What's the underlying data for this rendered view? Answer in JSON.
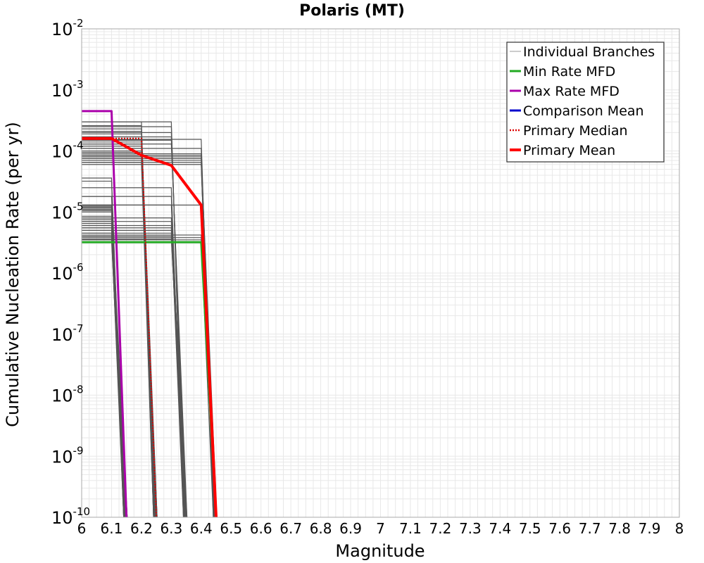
{
  "chart_data": {
    "type": "line",
    "title": "Polaris (MT)",
    "xlabel": "Magnitude",
    "ylabel": "Cumulative Nucleation Rate (per yr)",
    "xlim": [
      6,
      8
    ],
    "ylim": [
      1e-10,
      0.01
    ],
    "yscale": "log",
    "grid": true,
    "legend_position": "top-right",
    "x_ticks": [
      "6",
      "6.1",
      "6.2",
      "6.3",
      "6.4",
      "6.5",
      "6.6",
      "6.7",
      "6.8",
      "6.9",
      "7",
      "7.1",
      "7.2",
      "7.3",
      "7.4",
      "7.5",
      "7.6",
      "7.7",
      "7.8",
      "7.9",
      "8"
    ],
    "y_ticks": [
      {
        "base": "10",
        "exp": "-10",
        "value": 1e-10
      },
      {
        "base": "10",
        "exp": "-9",
        "value": 1e-09
      },
      {
        "base": "10",
        "exp": "-8",
        "value": 1e-08
      },
      {
        "base": "10",
        "exp": "-7",
        "value": 1e-07
      },
      {
        "base": "10",
        "exp": "-6",
        "value": 1e-06
      },
      {
        "base": "10",
        "exp": "-5",
        "value": 1e-05
      },
      {
        "base": "10",
        "exp": "-4",
        "value": 0.0001
      },
      {
        "base": "10",
        "exp": "-3",
        "value": 0.001
      },
      {
        "base": "10",
        "exp": "-2",
        "value": 0.01
      }
    ],
    "colors": {
      "individual": "#555555",
      "min_rate": "#22aa22",
      "max_rate": "#aa00aa",
      "comparison_mean": "#0000cc",
      "primary_median": "#dd0000",
      "primary_mean": "#ff0000",
      "grid": "#e8e8e8"
    },
    "legend": [
      {
        "key": "individual",
        "label": "Individual Branches",
        "style": "thin"
      },
      {
        "key": "min_rate",
        "label": "Min Rate MFD",
        "style": "solid"
      },
      {
        "key": "max_rate",
        "label": "Max Rate MFD",
        "style": "solid"
      },
      {
        "key": "comparison_mean",
        "label": "Comparison Mean",
        "style": "solid"
      },
      {
        "key": "primary_median",
        "label": " Primary Median",
        "style": "dotted"
      },
      {
        "key": "primary_mean",
        "label": "Primary Mean",
        "style": "thick"
      }
    ],
    "branch_groups": [
      {
        "m_end": 6.1,
        "values": [
          3.6e-05,
          3.2e-05,
          1.8e-05,
          1.3e-05,
          1.25e-05,
          1.2e-05,
          1.15e-05,
          1.1e-05,
          1.05e-05,
          1e-05,
          8.5e-06,
          8e-06,
          7.5e-06,
          7e-06,
          6.5e-06,
          6e-06,
          5.5e-06,
          5e-06,
          4.5e-06,
          4e-06,
          3.5e-06
        ]
      },
      {
        "m_end": 6.2,
        "values": [
          0.0003,
          0.00026,
          0.00023,
          0.00021,
          0.00019,
          0.00017,
          0.00015,
          0.00014,
          0.00013,
          0.00012,
          0.00011,
          0.0001,
          9.5e-05,
          9e-05,
          8.5e-05,
          8e-05,
          7.5e-05,
          7e-05,
          6.5e-05
        ]
      },
      {
        "m_end": 6.3,
        "values": [
          0.0003,
          0.00025,
          0.0002,
          0.00017,
          0.00015,
          0.00013,
          2.5e-05,
          1.8e-05,
          1.3e-05,
          8e-06,
          7e-06,
          6e-06,
          5.5e-06,
          5e-06,
          4.5e-06,
          4e-06,
          3.6e-06
        ]
      },
      {
        "m_end": 6.4,
        "values": [
          0.000155,
          0.00011,
          9e-05,
          8.5e-05,
          8e-05,
          7.5e-05,
          7e-05,
          6.5e-05,
          6e-05,
          1.3e-05,
          4.2e-06,
          3.8e-06,
          3.5e-06
        ]
      }
    ],
    "series": [
      {
        "name": "Min Rate MFD",
        "key": "min_rate",
        "x": [
          6,
          6.4,
          6.45
        ],
        "y": [
          3.2e-06,
          3.2e-06,
          1e-10
        ]
      },
      {
        "name": "Max Rate MFD",
        "key": "max_rate",
        "x": [
          6,
          6.1,
          6.15
        ],
        "y": [
          0.00045,
          0.00045,
          1e-10
        ]
      },
      {
        "name": " Primary Median",
        "key": "primary_median",
        "x": [
          6,
          6.2,
          6.25
        ],
        "y": [
          0.00016,
          0.00016,
          1e-10
        ]
      },
      {
        "name": "Primary Mean",
        "key": "primary_mean",
        "x": [
          6,
          6.1,
          6.2,
          6.3,
          6.4,
          6.45
        ],
        "y": [
          0.00016,
          0.00016,
          8.5e-05,
          5.8e-05,
          1.3e-05,
          1e-10
        ]
      }
    ]
  }
}
